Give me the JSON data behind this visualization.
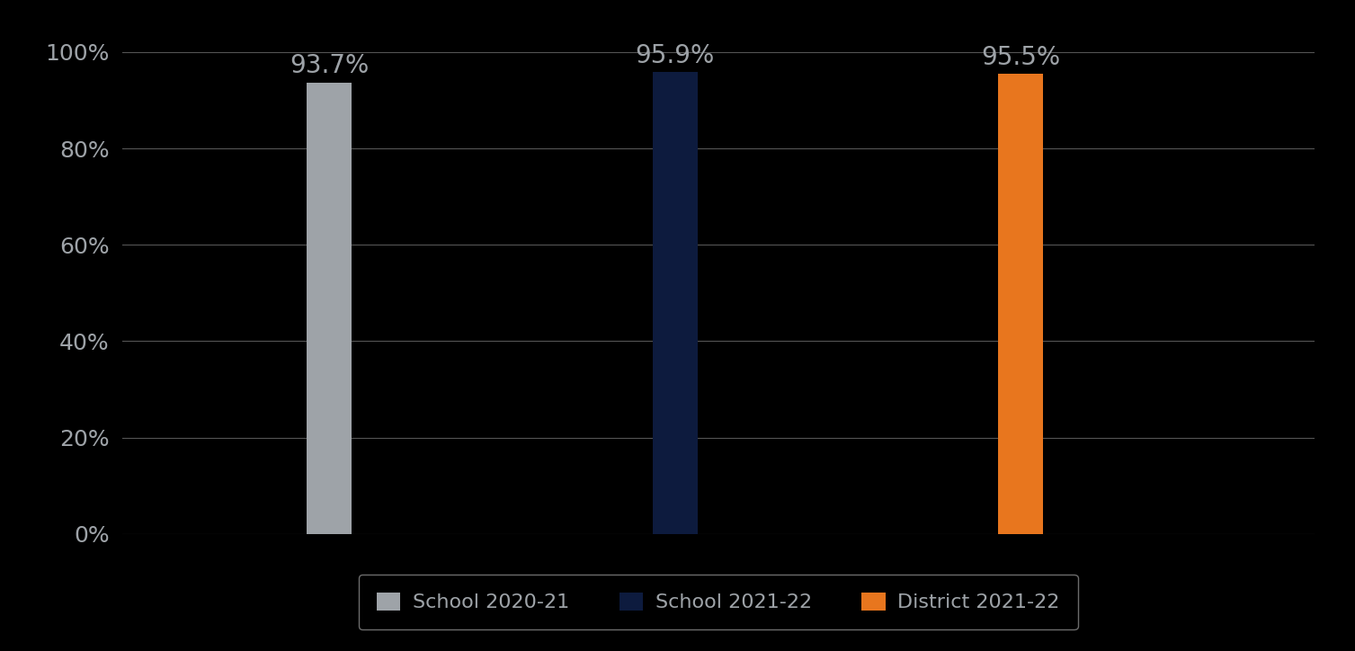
{
  "categories": [
    "School 2020-21",
    "School 2021-22",
    "District 2021-22"
  ],
  "values": [
    0.937,
    0.959,
    0.955
  ],
  "labels": [
    "93.7%",
    "95.9%",
    "95.5%"
  ],
  "bar_colors": [
    "#9EA3A8",
    "#0D1B3E",
    "#E8761E"
  ],
  "background_color": "#000000",
  "text_color": "#9EA3A8",
  "label_color": "#9EA3A8",
  "ylim": [
    0,
    1.0
  ],
  "yticks": [
    0.0,
    0.2,
    0.4,
    0.6,
    0.8,
    1.0
  ],
  "ytick_labels": [
    "0%",
    "20%",
    "40%",
    "60%",
    "80%",
    "100%"
  ],
  "grid_color": "#555555",
  "bar_width": 0.13,
  "bar_positions": [
    1,
    2,
    3
  ],
  "xlim": [
    0.4,
    3.85
  ],
  "legend_labels": [
    "School 2020-21",
    "School 2021-22",
    "District 2021-22"
  ],
  "legend_colors": [
    "#9EA3A8",
    "#0D1B3E",
    "#E8761E"
  ],
  "value_fontsize": 20,
  "tick_fontsize": 18,
  "legend_fontsize": 16
}
